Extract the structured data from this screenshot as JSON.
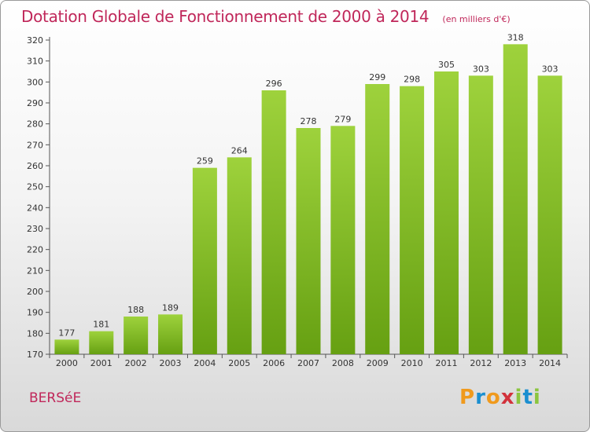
{
  "header": {
    "title": "Dotation Globale de Fonctionnement de 2000 à 2014",
    "subtitle": "(en milliers d'€)"
  },
  "footer": {
    "commune": "BERSéE",
    "logo": "Proxiti"
  },
  "colors": {
    "accent": "#c0275a",
    "bar_light": "#9ed23c",
    "bar_dark": "#66a012",
    "logo_letters": [
      "#f09a1d",
      "#1b8fd0",
      "#f09a1d",
      "#d2323c",
      "#8bc53f",
      "#1b8fd0",
      "#8bc53f"
    ]
  },
  "chart_data": {
    "type": "bar",
    "categories": [
      "2000",
      "2001",
      "2002",
      "2003",
      "2004",
      "2005",
      "2006",
      "2007",
      "2008",
      "2009",
      "2010",
      "2011",
      "2012",
      "2013",
      "2014"
    ],
    "values": [
      177,
      181,
      188,
      189,
      259,
      264,
      296,
      278,
      279,
      299,
      298,
      305,
      303,
      318,
      303
    ],
    "title": "Dotation Globale de Fonctionnement de 2000 à 2014",
    "ylim": [
      170,
      320
    ],
    "yticks": [
      170,
      180,
      190,
      200,
      210,
      220,
      230,
      240,
      250,
      260,
      270,
      280,
      290,
      300,
      310,
      320
    ],
    "grid": false,
    "data_labels": true
  }
}
